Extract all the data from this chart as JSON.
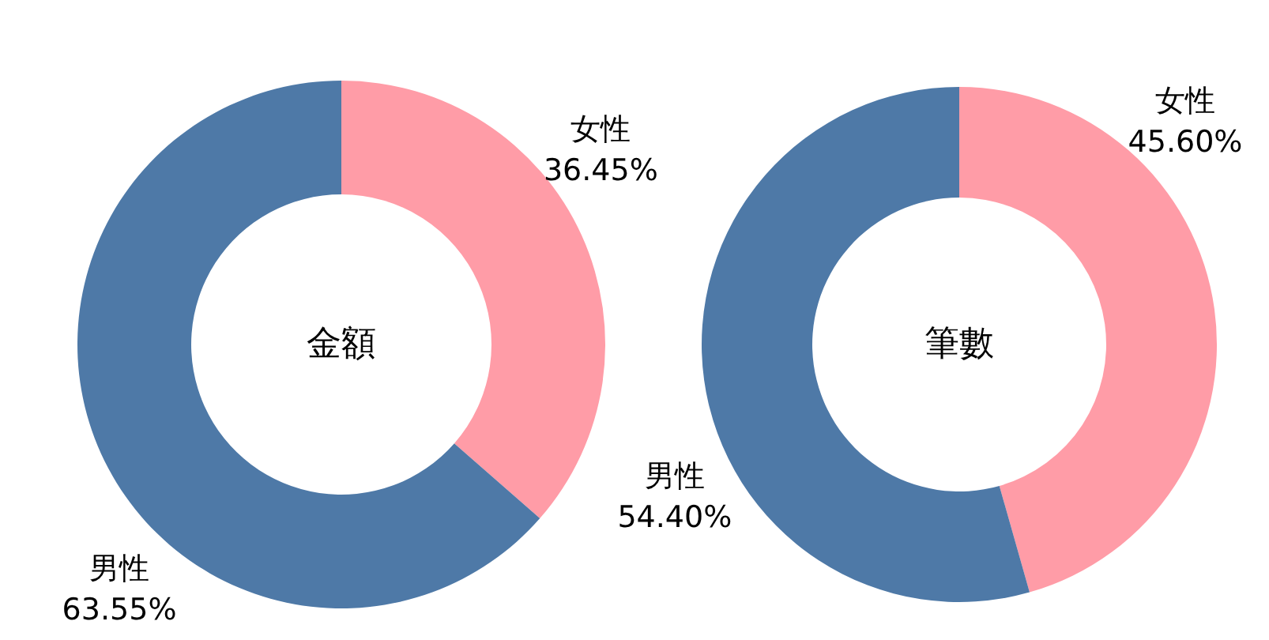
{
  "chart_data": [
    {
      "type": "donut",
      "title": "金額",
      "categories": [
        "女性",
        "男性"
      ],
      "values": [
        36.45,
        63.55
      ],
      "colors": [
        "#ff9ca7",
        "#4e79a7"
      ],
      "value_labels": [
        "36.45%",
        "63.55%"
      ]
    },
    {
      "type": "donut",
      "title": "筆數",
      "categories": [
        "女性",
        "男性"
      ],
      "values": [
        45.6,
        54.4
      ],
      "colors": [
        "#ff9ca7",
        "#4e79a7"
      ],
      "value_labels": [
        "45.60%",
        "54.40%"
      ]
    }
  ]
}
